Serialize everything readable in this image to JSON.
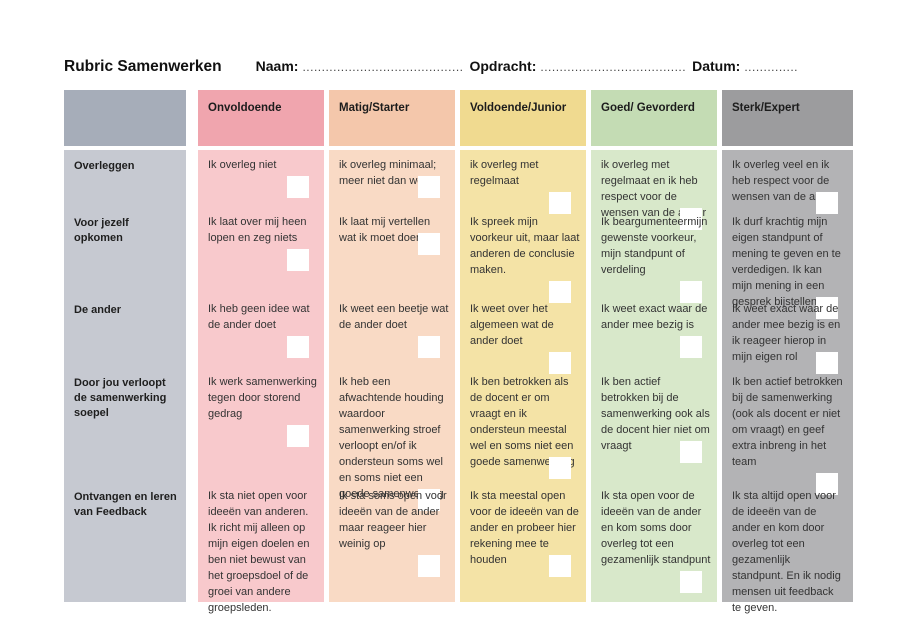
{
  "page": {
    "title": "Rubric Samenwerken",
    "naam_label": "Naam:",
    "naam_dots": "..........................................",
    "opdracht_label": "Opdracht:",
    "opdracht_dots": "......................................",
    "datum_label": "Datum:",
    "datum_dots": ".............."
  },
  "colors": {
    "label_header": "#a6adb9",
    "label_body": "#c6c9d1",
    "onvoldoende_header": "#f0a5ae",
    "onvoldoende_body": "#f8c9cc",
    "matig_header": "#f4c7ab",
    "matig_body": "#f9dac5",
    "voldoende_header": "#f0da90",
    "voldoende_body": "#f4e3a6",
    "goed_header": "#c4dcb4",
    "goed_body": "#d8e8ca",
    "sterk_header": "#9c9c9e",
    "sterk_body": "#b3b3b5",
    "checkbox": "#ffffff"
  },
  "rubric": {
    "levels": [
      "Onvoldoende",
      "Matig/Starter",
      "Voldoende/Junior",
      "Goed/ Gevorderd",
      "Sterk/Expert"
    ],
    "rows": [
      {
        "criterion": "Overleggen",
        "cells": [
          "Ik overleg niet",
          "ik overleg minimaal; meer niet dan wel",
          "ik overleg met regelmaat",
          "ik overleg met regelmaat en ik heb respect voor de wensen van de ander",
          "Ik overleg veel en ik heb respect voor de wensen van de ander"
        ]
      },
      {
        "criterion": "Voor jezelf opkomen",
        "cells": [
          "Ik laat over mij heen lopen en zeg niets",
          "Ik laat mij vertellen wat ik moet doen.",
          "Ik spreek mijn voorkeur uit, maar laat anderen de conclusie maken.",
          "Ik beargumenteermijn gewenste voorkeur, mijn standpunt of verdeling",
          "Ik durf krachtig mijn eigen standpunt of mening te geven en te verdedigen. Ik kan mijn mening in een gesprek bijstellen."
        ]
      },
      {
        "criterion": "De ander",
        "cells": [
          "Ik heb geen idee wat de ander doet",
          "Ik weet een beetje wat de ander doet",
          "Ik weet over het algemeen wat de ander doet",
          "Ik weet exact waar de ander mee bezig is",
          "Ik weet exact waar de ander mee bezig is en ik reageer hierop in mijn eigen rol"
        ]
      },
      {
        "criterion": "Door jou verloopt de samenwerking soepel",
        "cells": [
          "Ik werk samenwerking tegen door storend gedrag",
          "Ik heb een afwachtende houding waardoor samenwerking stroef verloopt en/of ik ondersteun soms wel en soms niet een goede samenwerking",
          "Ik ben betrokken als de docent er om vraagt en ik ondersteun meestal wel en soms niet een goede samenwerking",
          "Ik ben actief betrokken bij de samenwerking ook als de docent hier niet om vraagt",
          "Ik ben actief betrokken bij de samenwerking (ook als docent er niet om vraagt) en geef extra inbreng in het team"
        ]
      },
      {
        "criterion": "Ontvangen en leren van Feedback",
        "cells": [
          "Ik sta niet open voor ideeën van anderen. Ik richt mij alleen op mijn eigen doelen en ben niet bewust van het groepsdoel of de groei van andere groepsleden.",
          "Ik sta soms open voor ideeën van de ander maar reageer hier weinig op",
          "Ik sta meestal open voor de ideeën van de ander en probeer hier rekening mee te houden",
          "Ik sta open voor de ideeën van de ander en kom soms door overleg tot een gezamenlijk standpunt",
          "Ik sta altijd open voor de ideeën van de ander en kom door overleg tot een gezamenlijk standpunt. En ik nodig mensen uit feedback te geven."
        ]
      }
    ]
  }
}
